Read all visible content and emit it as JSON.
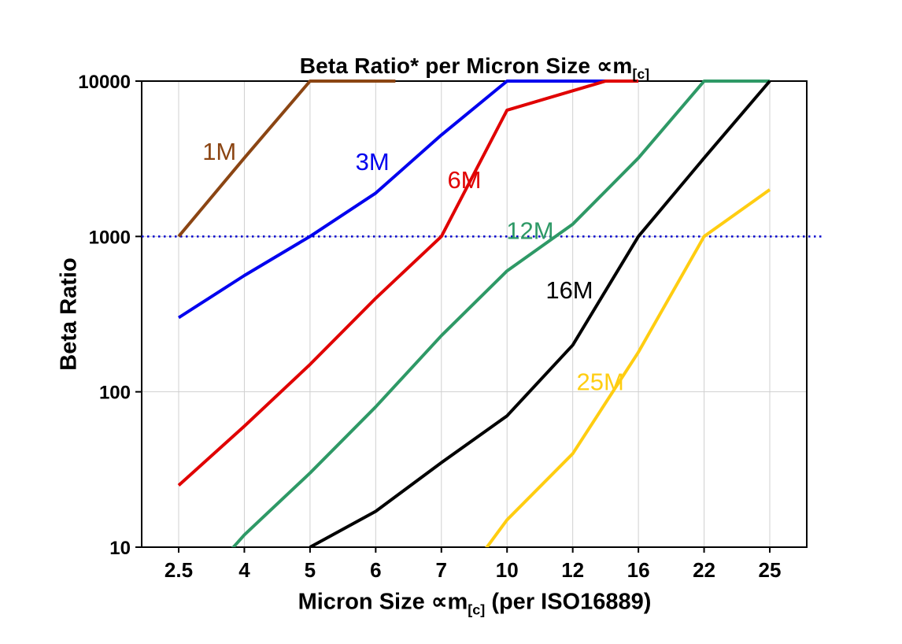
{
  "header": {
    "title_main": "Beta Ratio* per Micron Size ∝m",
    "title_sub": "[c]"
  },
  "axes": {
    "y_label": "Beta Ratio",
    "x_label_main": "Micron Size ∝m",
    "x_label_sub": "[c]",
    "x_label_tail": " (per ISO16889)"
  },
  "chart_data": {
    "type": "line",
    "title": "Beta Ratio* per Micron Size ∝m[c]",
    "xlabel": "Micron Size ∝m[c] (per ISO16889)",
    "ylabel": "Beta Ratio",
    "log_y": true,
    "ylim": [
      10,
      10000
    ],
    "y_ticks": [
      10,
      100,
      1000,
      10000
    ],
    "categories": [
      2.5,
      4,
      5,
      6,
      7,
      10,
      12,
      16,
      22,
      25
    ],
    "grid": "on",
    "grid_color": "#d0d0d0",
    "reference_line": {
      "y": 1000,
      "color": "#0000cc",
      "style": "dotted"
    },
    "series": [
      {
        "name": "1M",
        "color": "#8B4513",
        "points": [
          [
            2.5,
            1000
          ],
          [
            4,
            3200
          ],
          [
            5,
            10000
          ],
          [
            6.3,
            10000
          ]
        ],
        "label": {
          "xi": 0.62,
          "y": 3500
        }
      },
      {
        "name": "3M",
        "color": "#0000EE",
        "points": [
          [
            2.5,
            300
          ],
          [
            4,
            560
          ],
          [
            5,
            1000
          ],
          [
            6,
            1900
          ],
          [
            7,
            4500
          ],
          [
            10,
            10000
          ],
          [
            16,
            10000
          ]
        ],
        "label": {
          "xi": 2.95,
          "y": 3000
        }
      },
      {
        "name": "6M",
        "color": "#E00000",
        "points": [
          [
            2.5,
            25
          ],
          [
            4,
            60
          ],
          [
            5,
            150
          ],
          [
            6,
            400
          ],
          [
            7,
            1000
          ],
          [
            10,
            6500
          ],
          [
            14,
            10000
          ],
          [
            16,
            10000
          ]
        ],
        "label": {
          "xi": 4.35,
          "y": 2300
        }
      },
      {
        "name": "12M",
        "color": "#2E9966",
        "points": [
          [
            2.5,
            4
          ],
          [
            4,
            12
          ],
          [
            5,
            30
          ],
          [
            6,
            80
          ],
          [
            7,
            230
          ],
          [
            10,
            600
          ],
          [
            12,
            1200
          ],
          [
            16,
            3200
          ],
          [
            22,
            10000
          ],
          [
            25,
            10000
          ]
        ],
        "label": {
          "xi": 5.35,
          "y": 1080
        }
      },
      {
        "name": "16M",
        "color": "#000000",
        "points": [
          [
            5,
            10
          ],
          [
            6,
            17
          ],
          [
            7,
            35
          ],
          [
            10,
            70
          ],
          [
            12,
            200
          ],
          [
            16,
            1000
          ],
          [
            22,
            3200
          ],
          [
            25,
            10000
          ]
        ],
        "label": {
          "xi": 5.95,
          "y": 450
        }
      },
      {
        "name": "25M",
        "color": "#FFCD11",
        "points": [
          [
            7,
            4
          ],
          [
            10,
            15
          ],
          [
            12,
            40
          ],
          [
            16,
            180
          ],
          [
            22,
            1000
          ],
          [
            25,
            2000
          ]
        ],
        "label": {
          "xi": 6.42,
          "y": 115
        }
      }
    ]
  }
}
